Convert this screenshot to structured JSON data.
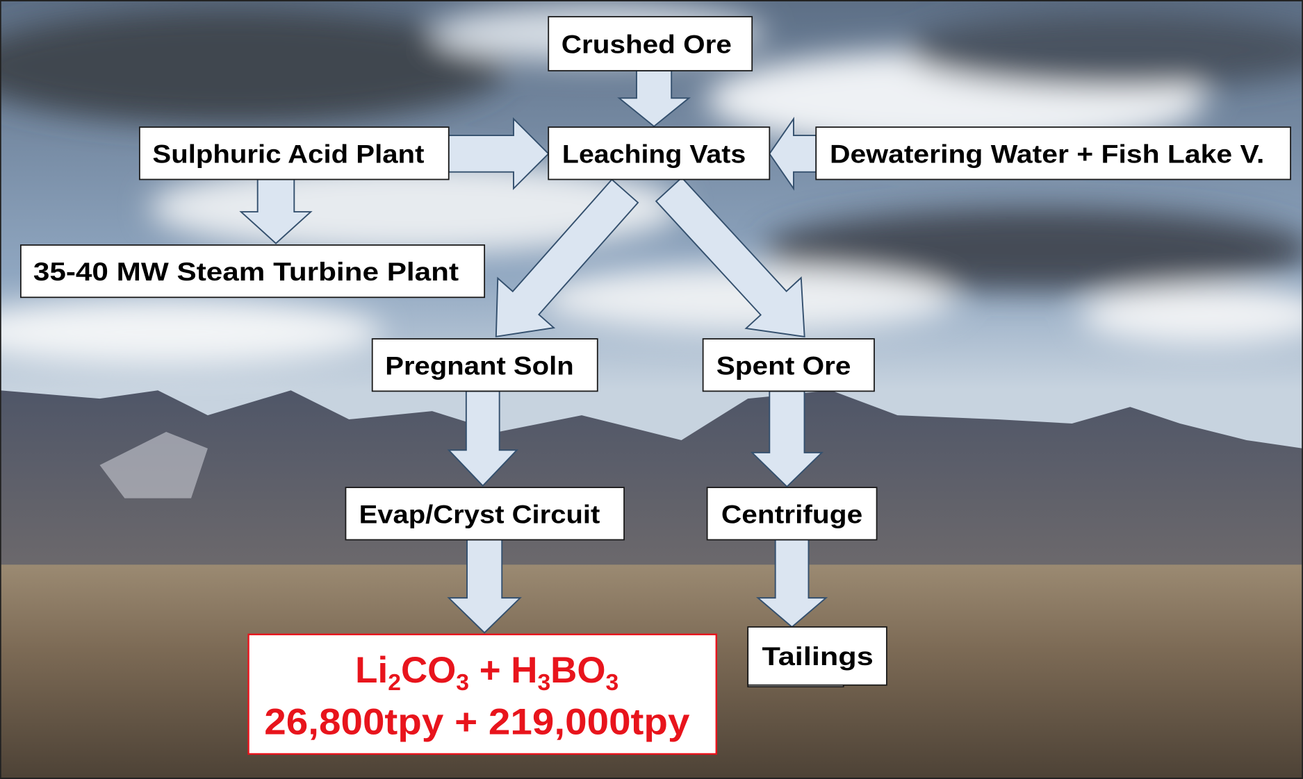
{
  "nodes": [
    "Crushed Ore",
    "Sulphuric Acid Plant",
    "Leaching Vats",
    "Dewatering Water + Fish Lake V.",
    "35-40 MW Steam Turbine Plant",
    "Pregnant Soln",
    "Spent Ore",
    "Evap/Cryst Circuit",
    "Centrifuge",
    "Tailings"
  ],
  "product": {
    "formula": [
      {
        "text": "Li",
        "sub": "2"
      },
      {
        "text": "CO",
        "sub": "3"
      },
      {
        "text": " + H",
        "sub": "3"
      },
      {
        "text": "BO",
        "sub": "3"
      }
    ],
    "quantities": "26,800tpy + 219,000tpy"
  }
}
